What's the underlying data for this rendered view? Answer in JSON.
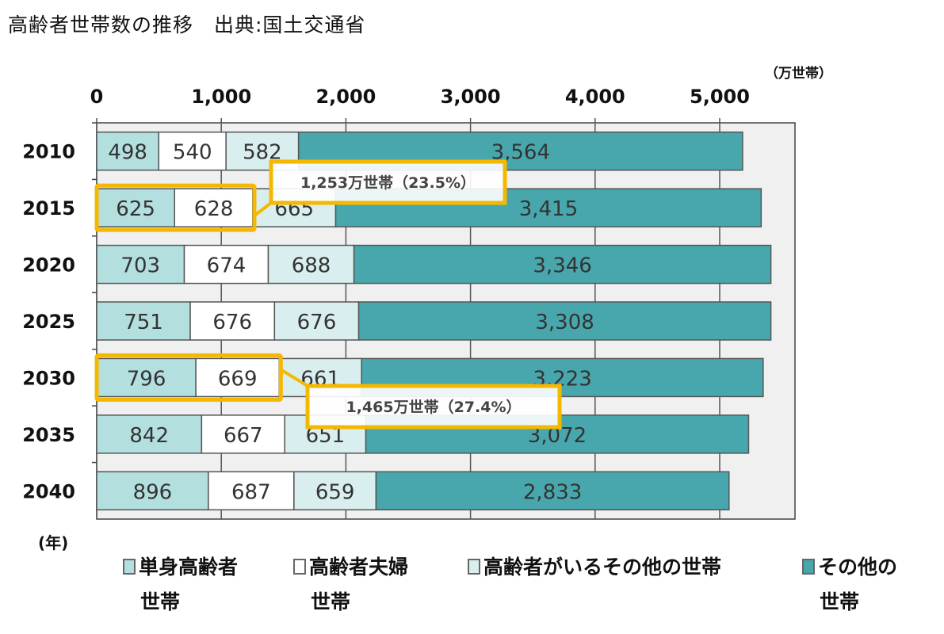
{
  "header": {
    "title": "高齢者世帯数の推移　出典:国土交通省"
  },
  "chart_data": {
    "type": "bar",
    "orientation": "horizontal",
    "stacked": true,
    "title": "高齢者世帯数の推移　出典:国土交通省",
    "unit_label": "（万世帯）",
    "ylabel": "(年)",
    "categories": [
      "2010",
      "2015",
      "2020",
      "2025",
      "2030",
      "2035",
      "2040"
    ],
    "xlim": [
      0,
      5600
    ],
    "xticks": [
      0,
      1000,
      2000,
      3000,
      4000,
      5000
    ],
    "xtick_labels": [
      "0",
      "1,000",
      "2,000",
      "3,000",
      "4,000",
      "5,000"
    ],
    "series": [
      {
        "name": "単身高齢者世帯",
        "legend_lines": [
          "単身高齢者",
          "世帯"
        ],
        "color": "#b4dfdf",
        "values": [
          498,
          625,
          703,
          751,
          796,
          842,
          896
        ],
        "labels": [
          "498",
          "625",
          "703",
          "751",
          "796",
          "842",
          "896"
        ]
      },
      {
        "name": "高齢者夫婦世帯",
        "legend_lines": [
          "高齢者夫婦",
          "世帯"
        ],
        "color": "#ffffff",
        "values": [
          540,
          628,
          674,
          676,
          669,
          667,
          687
        ],
        "labels": [
          "540",
          "628",
          "674",
          "676",
          "669",
          "667",
          "687"
        ]
      },
      {
        "name": "高齢者がいるその他の世帯",
        "legend_lines": [
          "高齢者がいるその他の世帯"
        ],
        "color": "#d9eeee",
        "values": [
          582,
          665,
          688,
          676,
          661,
          651,
          659
        ],
        "labels": [
          "582",
          "665",
          "688",
          "676",
          "661",
          "651",
          "659"
        ]
      },
      {
        "name": "その他の世帯",
        "legend_lines": [
          "その他の",
          "世帯"
        ],
        "color": "#48a7ad",
        "values": [
          3564,
          3415,
          3346,
          3308,
          3223,
          3072,
          2833
        ],
        "labels": [
          "3,564",
          "3,415",
          "3,346",
          "3,308",
          "3,223",
          "3,072",
          "2,833"
        ]
      }
    ],
    "annotations": [
      {
        "category": "2015",
        "text": "1,253万世帯（23.5%）"
      },
      {
        "category": "2030",
        "text": "1,465万世帯（27.4%）"
      }
    ],
    "highlight_color": "#f5b800",
    "grid": true,
    "legend_position": "bottom"
  }
}
